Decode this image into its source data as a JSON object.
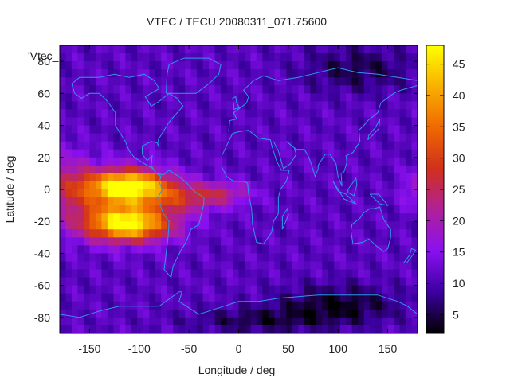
{
  "chart_data": {
    "type": "heatmap",
    "title": "VTEC / TECU 20080311_071.75600",
    "xlabel": "Longitude / deg",
    "ylabel": "Latitude / deg",
    "series_label": "'Vtec_",
    "xlim": [
      -180,
      180
    ],
    "ylim": [
      -90,
      90
    ],
    "x_ticks": [
      -150,
      -100,
      -50,
      0,
      50,
      100,
      150
    ],
    "y_ticks": [
      -80,
      -60,
      -40,
      -20,
      0,
      20,
      40,
      60,
      80
    ],
    "colorbar": {
      "range": [
        2,
        48
      ],
      "ticks": [
        5,
        10,
        15,
        20,
        25,
        30,
        35,
        40,
        45
      ],
      "palette": [
        "#000000",
        "#3c00a0",
        "#8a10f0",
        "#b0209a",
        "#d0301c",
        "#f06800",
        "#f8b000",
        "#ffff00"
      ]
    },
    "features": {
      "equatorial_anomaly_north": {
        "lon": -110,
        "lat": 2,
        "value": 46
      },
      "equatorial_anomaly_south": {
        "lon": -110,
        "lat": -22,
        "value": 46
      },
      "background_value": 11,
      "southern_polar_minimum": {
        "lon": 100,
        "lat": -72,
        "value": 3
      },
      "northern_polar_minimum": {
        "lon": 120,
        "lat": 75,
        "value": 5
      }
    },
    "grid": false,
    "legend": "right colorbar"
  }
}
